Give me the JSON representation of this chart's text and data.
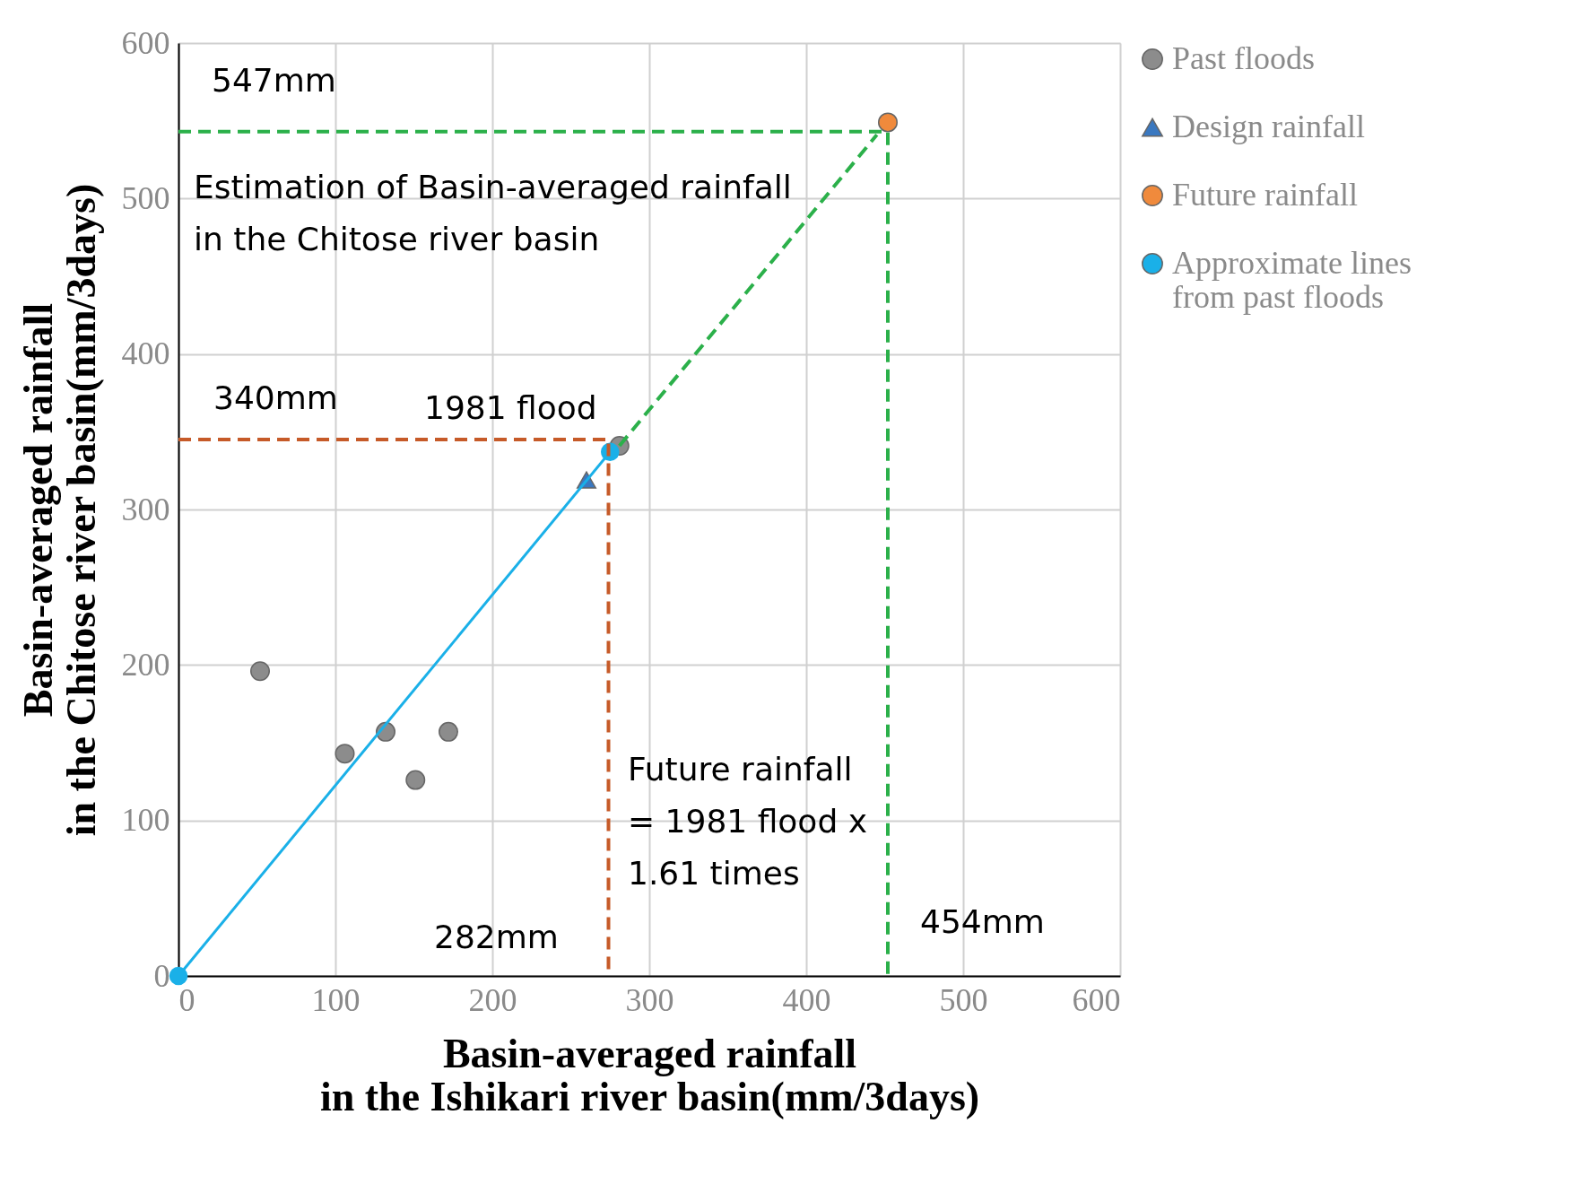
{
  "chart_data": {
    "type": "scatter",
    "xlabel": "Basin-averaged rainfall\nin the Ishikari river basin(mm/3days)",
    "ylabel": "Basin-averaged rainfall\nin the Chitose river basin(mm/3days)",
    "xlim": [
      0,
      600
    ],
    "ylim": [
      0,
      600
    ],
    "xticks": [
      0,
      100,
      200,
      300,
      400,
      500,
      600
    ],
    "yticks": [
      0,
      100,
      200,
      300,
      400,
      500,
      600
    ],
    "grid": true,
    "legend": "right",
    "series": [
      {
        "name": "Past floods",
        "type": "scatter",
        "marker": "circle",
        "color": "#8c8c8c",
        "x": [
          52,
          106,
          132,
          151,
          172,
          281
        ],
        "values": [
          196,
          143,
          157,
          126,
          157,
          341
        ]
      },
      {
        "name": "Design rainfall",
        "type": "scatter",
        "marker": "triangle",
        "color": "#3a78c0",
        "x": [
          260
        ],
        "values": [
          319
        ]
      },
      {
        "name": "Future rainfall",
        "type": "scatter",
        "marker": "circle",
        "color": "#f08a3c",
        "x": [
          452
        ],
        "values": [
          549
        ]
      },
      {
        "name": "Approximate lines\nfrom past floods",
        "type": "line",
        "marker": "circle",
        "color": "#1ab0e8",
        "x": [
          0,
          275
        ],
        "values": [
          0,
          337
        ]
      },
      {
        "type": "line",
        "line_style": "dashed",
        "color": "#c65a28",
        "x": [
          0,
          274,
          274
        ],
        "values": [
          345,
          345,
          0
        ]
      },
      {
        "type": "line",
        "line_style": "dashed",
        "color": "#2bb04a",
        "x": [
          0,
          452,
          452
        ],
        "values": [
          543,
          543,
          0
        ]
      },
      {
        "type": "line",
        "line_style": "dashed",
        "color": "#2bb04a",
        "x": [
          281,
          445
        ],
        "values": [
          341,
          541
        ]
      }
    ],
    "annotations": [
      "547mm",
      "Estimation of Basin-averaged rainfall\n in the Chitose river basin",
      "340mm",
      "1981 flood",
      "Future  rainfall\n= 1981 flood x\n1.61 times",
      "282mm",
      "454mm"
    ]
  }
}
